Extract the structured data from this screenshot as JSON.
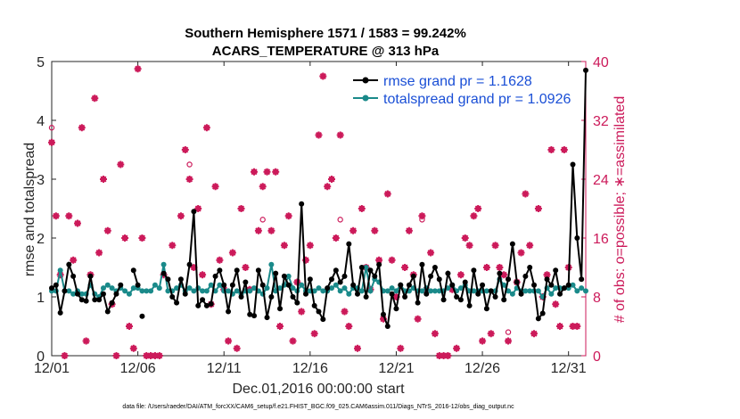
{
  "colors": {
    "rmse": "#000000",
    "spread": "#1a8a8a",
    "obs": "#cc1a5a",
    "legend_text": "#1a4fd6",
    "axis": "#262626"
  },
  "chart_data": {
    "type": "line",
    "title_line1": "Southern Hemisphere 1571 / 1583 = 99.242%",
    "title_line2": "ACARS_TEMPERATURE @ 313 hPa",
    "xlabel": "Dec.01,2016 00:00:00 start",
    "ylabel": "rmse and totalspread",
    "ylabel_right": "# of obs: o=possible; ∗=assimilated",
    "footer": "data file: /Users/raeder/DAI/ATM_forcXX/CAM6_setup/f.e21.FHIST_BGC.f09_025.CAM6assim.011/Diags_NTrS_2016-12/obs_diag_output.nc",
    "xlim": [
      1,
      32
    ],
    "ylim": [
      0,
      5
    ],
    "ylim_right": [
      0,
      40
    ],
    "yticks": [
      "0",
      "1",
      "2",
      "3",
      "4",
      "5"
    ],
    "yticks_right": [
      "0",
      "8",
      "16",
      "24",
      "32",
      "40"
    ],
    "xticks": [
      {
        "v": 1,
        "label": "12/01"
      },
      {
        "v": 6,
        "label": "12/06"
      },
      {
        "v": 11,
        "label": "12/11"
      },
      {
        "v": 16,
        "label": "12/16"
      },
      {
        "v": 21,
        "label": "12/21"
      },
      {
        "v": 26,
        "label": "12/26"
      },
      {
        "v": 31,
        "label": "12/31"
      }
    ],
    "legend": [
      {
        "name": "rmse grand pr = 1.1628"
      },
      {
        "name": "totalspread grand pr = 1.0926"
      }
    ],
    "segments": [
      {
        "start": 1.0,
        "rmse": [
          1.15,
          1.2,
          0.73,
          1.1,
          1.55,
          1.35,
          1.05,
          0.95,
          0.93,
          1.35,
          0.95,
          0.95,
          1.05,
          0.75,
          0.9,
          1.05,
          1.2
        ]
      },
      {
        "start": 5.75,
        "rmse": [
          1.45,
          1.2
        ]
      },
      {
        "start": 6.25,
        "rmse": [
          0.67
        ]
      },
      {
        "start": 7.5,
        "rmse": [
          1.4,
          1.3,
          1.0,
          0.9,
          1.3,
          1.05,
          1.55,
          2.45,
          0.85,
          0.95,
          0.85,
          0.88,
          1.35,
          1.45,
          1.2,
          0.75,
          1.2,
          1.45,
          1.0,
          1.25,
          0.7,
          0.68,
          1.45,
          1.2,
          0.65,
          1.0,
          1.4,
          0.8,
          1.35,
          1.2,
          1.0,
          0.9,
          2.58,
          1.05,
          1.3,
          0.85,
          0.75,
          0.62,
          1.15,
          1.3,
          1.45,
          1.25,
          1.35,
          1.9,
          1.2,
          1.05,
          1.5,
          1.0,
          1.45,
          1.35,
          1.55,
          0.7,
          0.5,
          1.05,
          0.8,
          1.2,
          1.0,
          1.2,
          1.35,
          0.9,
          1.55,
          1.05,
          1.35,
          1.5,
          1.3,
          0.95,
          1.4,
          1.2,
          1.0,
          0.95,
          1.25,
          0.85,
          1.45,
          1.05,
          1.2,
          0.8,
          1.1,
          1.0,
          1.4,
          0.95,
          1.3,
          1.9,
          1.25,
          1.05,
          1.35,
          1.5,
          1.2,
          0.63,
          0.72,
          1.3,
          1.2,
          1.45,
          1.05,
          1.15,
          1.2,
          3.25,
          2.0,
          1.3,
          4.85,
          1.7,
          1.5,
          1.15,
          1.1,
          1.85,
          1.4,
          1.25,
          1.05,
          1.2,
          1.65,
          1.0,
          1.4,
          1.25,
          1.2,
          0.95
        ]
      }
    ],
    "spread": [
      1.1,
      1.1,
      1.45,
      1.1,
      1.1,
      1.05,
      1.1,
      1.05,
      1.05,
      1.2,
      1.05,
      1.0,
      1.15,
      1.2,
      1.15,
      1.1,
      1.15,
      1.1,
      1.05,
      1.15,
      1.15,
      1.1,
      1.1,
      1.1,
      1.2,
      1.15,
      1.55,
      1.1,
      1.1,
      1.15,
      1.2,
      1.1,
      1.15,
      1.1,
      1.15,
      1.1,
      1.1,
      1.2,
      1.1,
      1.2,
      1.1,
      1.1,
      1.05,
      1.1,
      1.05,
      1.1,
      1.1,
      1.15,
      1.1,
      1.05,
      1.15,
      1.55,
      1.1,
      1.15,
      1.2,
      1.35,
      1.15,
      1.1,
      1.2,
      1.1,
      1.1,
      1.1,
      1.15,
      1.1,
      1.1,
      1.15,
      1.2,
      1.1,
      1.15,
      1.05,
      1.15,
      1.15,
      1.1,
      1.5,
      1.1,
      1.3,
      1.25,
      1.1,
      1.1,
      1.15,
      1.1,
      1.2,
      1.1,
      1.1,
      1.15,
      1.1,
      1.1,
      1.15,
      1.1,
      1.1,
      1.1,
      1.1,
      1.15,
      1.2,
      1.1,
      1.15,
      1.2,
      1.1,
      1.1,
      1.1,
      1.1,
      1.1,
      1.1,
      1.1,
      1.3,
      1.2,
      1.1,
      1.05,
      1.15,
      1.1,
      1.1,
      1.1,
      1.1,
      1.1,
      1.0,
      1.15,
      1.05,
      1.15,
      1.15,
      1.15,
      1.15,
      1.2,
      1.1,
      1.15,
      1.1,
      1.1,
      1.1,
      1.1,
      1.15,
      1.1,
      1.1,
      1.45,
      1.1,
      1.2,
      1.05,
      2.25,
      1.1,
      1.2,
      1.25,
      1.1,
      1.1,
      1.15,
      1.1,
      1.15,
      1.1,
      1.1,
      1.15,
      1.2,
      1.1,
      1.1
    ],
    "obs_x_values_note": "obs points: [day, count]",
    "obs_assimilated": [
      [
        1.0,
        29
      ],
      [
        1.25,
        19
      ],
      [
        1.5,
        11
      ],
      [
        1.75,
        0
      ],
      [
        2.0,
        19
      ],
      [
        2.25,
        13
      ],
      [
        2.5,
        18
      ],
      [
        2.75,
        31
      ],
      [
        3.0,
        2
      ],
      [
        3.25,
        11
      ],
      [
        3.5,
        35
      ],
      [
        3.75,
        14
      ],
      [
        4.0,
        24
      ],
      [
        4.25,
        17
      ],
      [
        4.5,
        7
      ],
      [
        4.75,
        0
      ],
      [
        5.0,
        26
      ],
      [
        5.25,
        16
      ],
      [
        5.5,
        4
      ],
      [
        5.75,
        1
      ],
      [
        6.0,
        39
      ],
      [
        6.25,
        16
      ],
      [
        6.5,
        0
      ],
      [
        6.75,
        0
      ],
      [
        7.0,
        0
      ],
      [
        7.25,
        0
      ],
      [
        7.5,
        11
      ],
      [
        8.0,
        15
      ],
      [
        8.5,
        19
      ],
      [
        8.75,
        28
      ],
      [
        9.0,
        24
      ],
      [
        9.25,
        12
      ],
      [
        9.5,
        20
      ],
      [
        9.75,
        11
      ],
      [
        10.0,
        31
      ],
      [
        10.25,
        7
      ],
      [
        10.5,
        23
      ],
      [
        10.75,
        13
      ],
      [
        11.0,
        9
      ],
      [
        11.25,
        2
      ],
      [
        11.5,
        14
      ],
      [
        11.75,
        1
      ],
      [
        12.0,
        20
      ],
      [
        12.25,
        12
      ],
      [
        12.5,
        9
      ],
      [
        12.75,
        25
      ],
      [
        13.0,
        17
      ],
      [
        13.25,
        23
      ],
      [
        13.5,
        25
      ],
      [
        13.75,
        17
      ],
      [
        14.0,
        25
      ],
      [
        14.25,
        4
      ],
      [
        14.5,
        15
      ],
      [
        14.75,
        19
      ],
      [
        15.0,
        2
      ],
      [
        15.25,
        10
      ],
      [
        15.5,
        6
      ],
      [
        15.75,
        13
      ],
      [
        16.0,
        15
      ],
      [
        16.25,
        3
      ],
      [
        16.5,
        30
      ],
      [
        16.75,
        38
      ],
      [
        17.0,
        23
      ],
      [
        17.25,
        24
      ],
      [
        17.5,
        16
      ],
      [
        17.75,
        30
      ],
      [
        18.0,
        6
      ],
      [
        18.25,
        4
      ],
      [
        18.5,
        17
      ],
      [
        18.75,
        1
      ],
      [
        19.0,
        20
      ],
      [
        19.25,
        12
      ],
      [
        19.5,
        9
      ],
      [
        19.75,
        17
      ],
      [
        20.0,
        13
      ],
      [
        20.25,
        5
      ],
      [
        20.5,
        22
      ],
      [
        20.75,
        13
      ],
      [
        21.0,
        8
      ],
      [
        21.25,
        1
      ],
      [
        21.5,
        12
      ],
      [
        21.75,
        17
      ],
      [
        22.0,
        11
      ],
      [
        22.25,
        5
      ],
      [
        22.5,
        19
      ],
      [
        22.75,
        9
      ],
      [
        23.0,
        14
      ],
      [
        23.25,
        3
      ],
      [
        23.5,
        0
      ],
      [
        23.75,
        0
      ],
      [
        24.0,
        0
      ],
      [
        24.25,
        9
      ],
      [
        24.5,
        1
      ],
      [
        24.75,
        11
      ],
      [
        25.0,
        16
      ],
      [
        25.25,
        15
      ],
      [
        25.5,
        19
      ],
      [
        25.75,
        20
      ],
      [
        26.0,
        2
      ],
      [
        26.25,
        12
      ],
      [
        26.5,
        3
      ],
      [
        26.75,
        15
      ],
      [
        27.0,
        12
      ],
      [
        27.25,
        11
      ],
      [
        27.5,
        2
      ],
      [
        28.0,
        10
      ],
      [
        28.25,
        14
      ],
      [
        28.5,
        22
      ],
      [
        28.75,
        15
      ],
      [
        29.0,
        3
      ],
      [
        29.25,
        20
      ],
      [
        29.5,
        8
      ],
      [
        29.75,
        11
      ],
      [
        30.0,
        28
      ],
      [
        30.25,
        7
      ],
      [
        30.5,
        4
      ],
      [
        30.75,
        28
      ],
      [
        31.0,
        12
      ],
      [
        31.25,
        4
      ],
      [
        31.5,
        4
      ]
    ],
    "obs_possible_extra": [
      [
        1.0,
        31
      ],
      [
        9.0,
        26
      ],
      [
        13.25,
        18.5
      ],
      [
        17.75,
        18.5
      ],
      [
        22.5,
        18.5
      ],
      [
        27.5,
        3.2
      ]
    ]
  }
}
